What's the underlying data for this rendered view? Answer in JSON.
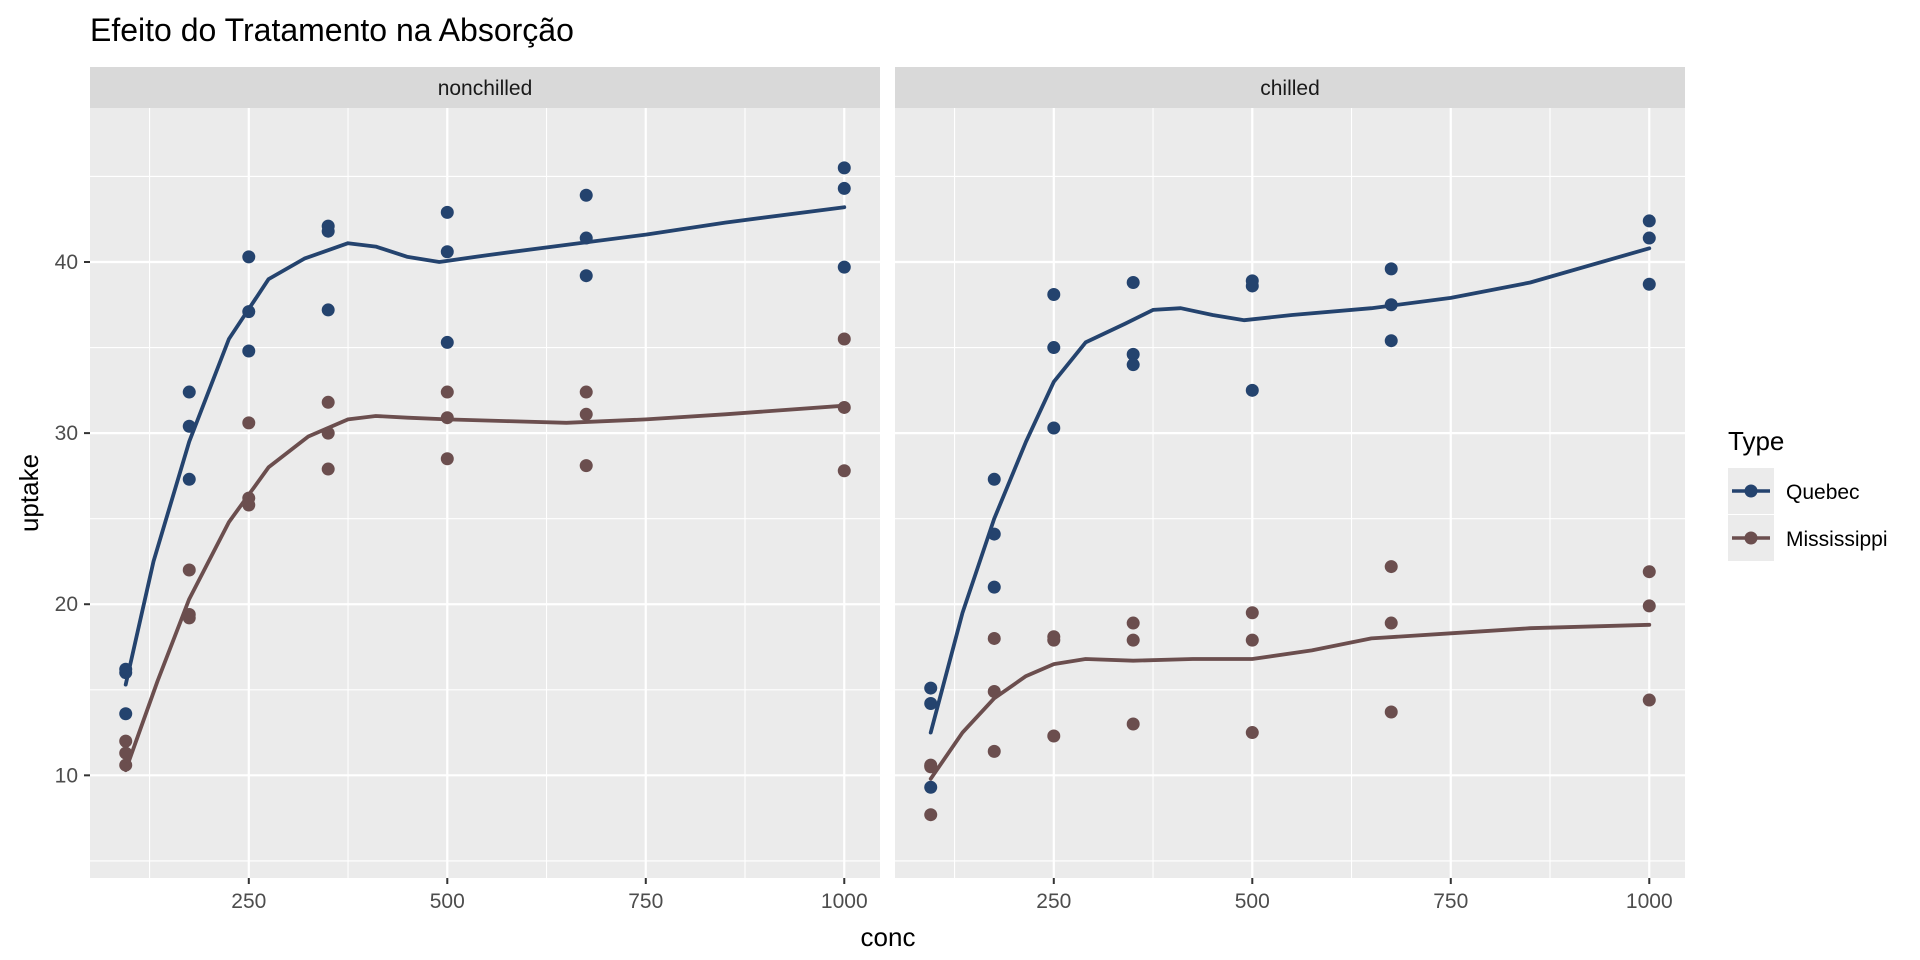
{
  "chart_data": {
    "type": "scatter",
    "title": "Efeito do Tratamento na Absorção",
    "xlabel": "conc",
    "ylabel": "uptake",
    "xlim": [
      50,
      1045
    ],
    "ylim": [
      4,
      49
    ],
    "x_ticks": [
      250,
      500,
      750,
      1000
    ],
    "y_ticks": [
      10,
      20,
      30,
      40
    ],
    "grid": true,
    "legend": {
      "title": "Type",
      "position": "right",
      "entries": [
        {
          "label": "Quebec",
          "color": "#24436e"
        },
        {
          "label": "Mississippi",
          "color": "#6b4e4e"
        }
      ]
    },
    "colors": {
      "Quebec": "#24436e",
      "Mississippi": "#6b4e4e",
      "panel_background": "#ebebeb",
      "strip_background": "#d9d9d9",
      "grid": "#ffffff"
    },
    "panels": [
      {
        "label": "nonchilled",
        "series": [
          {
            "name": "Quebec",
            "points": [
              [
                95,
                16.0
              ],
              [
                95,
                13.6
              ],
              [
                95,
                16.2
              ],
              [
                175,
                30.4
              ],
              [
                175,
                27.3
              ],
              [
                175,
                32.4
              ],
              [
                250,
                34.8
              ],
              [
                250,
                37.1
              ],
              [
                250,
                40.3
              ],
              [
                350,
                37.2
              ],
              [
                350,
                41.8
              ],
              [
                350,
                42.1
              ],
              [
                500,
                35.3
              ],
              [
                500,
                40.6
              ],
              [
                500,
                42.9
              ],
              [
                675,
                39.2
              ],
              [
                675,
                41.4
              ],
              [
                675,
                43.9
              ],
              [
                1000,
                39.7
              ],
              [
                1000,
                44.3
              ],
              [
                1000,
                45.5
              ]
            ],
            "smooth": [
              [
                95,
                15.3
              ],
              [
                130,
                22.5
              ],
              [
                175,
                29.5
              ],
              [
                225,
                35.5
              ],
              [
                275,
                39.0
              ],
              [
                320,
                40.2
              ],
              [
                375,
                41.1
              ],
              [
                410,
                40.9
              ],
              [
                450,
                40.3
              ],
              [
                490,
                40.0
              ],
              [
                550,
                40.4
              ],
              [
                650,
                41.0
              ],
              [
                750,
                41.6
              ],
              [
                850,
                42.3
              ],
              [
                1000,
                43.2
              ]
            ]
          },
          {
            "name": "Mississippi",
            "points": [
              [
                95,
                10.6
              ],
              [
                95,
                12.0
              ],
              [
                95,
                11.3
              ],
              [
                175,
                19.2
              ],
              [
                175,
                22.0
              ],
              [
                175,
                19.4
              ],
              [
                250,
                26.2
              ],
              [
                250,
                30.6
              ],
              [
                250,
                25.8
              ],
              [
                350,
                30.0
              ],
              [
                350,
                31.8
              ],
              [
                350,
                27.9
              ],
              [
                500,
                30.9
              ],
              [
                500,
                32.4
              ],
              [
                500,
                28.5
              ],
              [
                675,
                32.4
              ],
              [
                675,
                31.1
              ],
              [
                675,
                28.1
              ],
              [
                1000,
                35.5
              ],
              [
                1000,
                31.5
              ],
              [
                1000,
                27.8
              ]
            ],
            "smooth": [
              [
                95,
                10.3
              ],
              [
                135,
                15.5
              ],
              [
                175,
                20.3
              ],
              [
                225,
                24.8
              ],
              [
                275,
                28.0
              ],
              [
                325,
                29.8
              ],
              [
                375,
                30.8
              ],
              [
                410,
                31.0
              ],
              [
                450,
                30.9
              ],
              [
                500,
                30.8
              ],
              [
                575,
                30.7
              ],
              [
                650,
                30.6
              ],
              [
                750,
                30.8
              ],
              [
                850,
                31.1
              ],
              [
                1000,
                31.6
              ]
            ]
          }
        ]
      },
      {
        "label": "chilled",
        "series": [
          {
            "name": "Quebec",
            "points": [
              [
                95,
                14.2
              ],
              [
                95,
                9.3
              ],
              [
                95,
                15.1
              ],
              [
                175,
                24.1
              ],
              [
                175,
                27.3
              ],
              [
                175,
                21.0
              ],
              [
                250,
                30.3
              ],
              [
                250,
                35.0
              ],
              [
                250,
                38.1
              ],
              [
                350,
                34.6
              ],
              [
                350,
                38.8
              ],
              [
                350,
                34.0
              ],
              [
                500,
                32.5
              ],
              [
                500,
                38.9
              ],
              [
                500,
                38.6
              ],
              [
                675,
                35.4
              ],
              [
                675,
                37.5
              ],
              [
                675,
                39.6
              ],
              [
                1000,
                38.7
              ],
              [
                1000,
                42.4
              ],
              [
                1000,
                41.4
              ]
            ],
            "smooth": [
              [
                95,
                12.5
              ],
              [
                135,
                19.5
              ],
              [
                175,
                25.0
              ],
              [
                215,
                29.5
              ],
              [
                250,
                33.0
              ],
              [
                290,
                35.3
              ],
              [
                340,
                36.4
              ],
              [
                375,
                37.2
              ],
              [
                410,
                37.3
              ],
              [
                450,
                36.9
              ],
              [
                490,
                36.6
              ],
              [
                550,
                36.9
              ],
              [
                650,
                37.3
              ],
              [
                750,
                37.9
              ],
              [
                850,
                38.8
              ],
              [
                1000,
                40.8
              ]
            ]
          },
          {
            "name": "Mississippi",
            "points": [
              [
                95,
                7.7
              ],
              [
                95,
                10.6
              ],
              [
                95,
                10.5
              ],
              [
                175,
                11.4
              ],
              [
                175,
                18.0
              ],
              [
                175,
                14.9
              ],
              [
                250,
                12.3
              ],
              [
                250,
                17.9
              ],
              [
                250,
                18.1
              ],
              [
                350,
                13.0
              ],
              [
                350,
                17.9
              ],
              [
                350,
                18.9
              ],
              [
                500,
                12.5
              ],
              [
                500,
                17.9
              ],
              [
                500,
                19.5
              ],
              [
                675,
                13.7
              ],
              [
                675,
                18.9
              ],
              [
                675,
                22.2
              ],
              [
                1000,
                14.4
              ],
              [
                1000,
                19.9
              ],
              [
                1000,
                21.9
              ]
            ],
            "smooth": [
              [
                95,
                9.8
              ],
              [
                135,
                12.5
              ],
              [
                175,
                14.5
              ],
              [
                215,
                15.8
              ],
              [
                250,
                16.5
              ],
              [
                290,
                16.8
              ],
              [
                350,
                16.7
              ],
              [
                425,
                16.8
              ],
              [
                500,
                16.8
              ],
              [
                575,
                17.3
              ],
              [
                650,
                18.0
              ],
              [
                750,
                18.3
              ],
              [
                850,
                18.6
              ],
              [
                1000,
                18.8
              ]
            ]
          }
        ]
      }
    ]
  }
}
